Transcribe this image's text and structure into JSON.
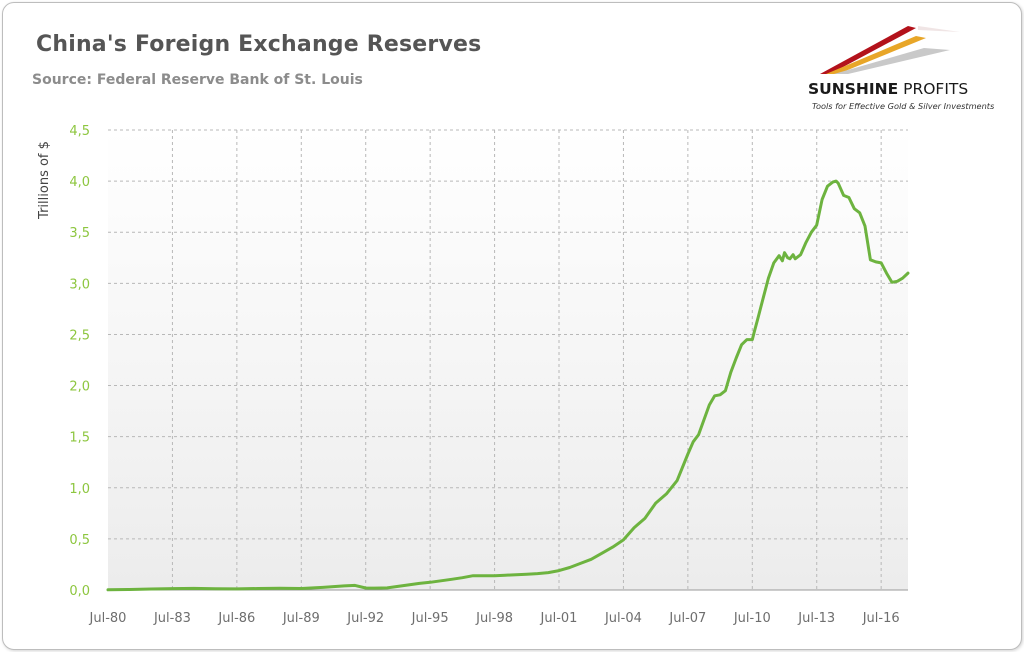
{
  "header": {
    "title": "China's Foreign Exchange Reserves",
    "subtitle": "Source: Federal Reserve Bank of St. Louis"
  },
  "logo": {
    "brand_bold": "SUNSHINE",
    "brand_light": " PROFITS",
    "tagline": "Tools for Effective Gold & Silver Investments",
    "colors": [
      "#b3121b",
      "#e8a628",
      "#c9c9c9"
    ]
  },
  "colors": {
    "line": "#6db33f",
    "ytick": "#8dc63f",
    "plot_bg_top": "#ffffff",
    "plot_bg_bottom": "#ececec",
    "grid": "#b8b8b8"
  },
  "chart_data": {
    "type": "line",
    "title": "China's Foreign Exchange Reserves",
    "subtitle": "Source: Federal Reserve Bank of St. Louis",
    "xlabel": "",
    "ylabel": "Trillions of $",
    "ylim": [
      0,
      4.5
    ],
    "xlim": [
      1980.5,
      2017.75
    ],
    "yticks": [
      "0,0",
      "0,5",
      "1,0",
      "1,5",
      "2,0",
      "2,5",
      "3,0",
      "3,5",
      "4,0",
      "4,5"
    ],
    "ytick_values": [
      0,
      0.5,
      1.0,
      1.5,
      2.0,
      2.5,
      3.0,
      3.5,
      4.0,
      4.5
    ],
    "xticks": [
      "Jul-80",
      "Jul-83",
      "Jul-86",
      "Jul-89",
      "Jul-92",
      "Jul-95",
      "Jul-98",
      "Jul-01",
      "Jul-04",
      "Jul-07",
      "Jul-10",
      "Jul-13",
      "Jul-16"
    ],
    "xtick_values": [
      1980.5,
      1983.5,
      1986.5,
      1989.5,
      1992.5,
      1995.5,
      1998.5,
      2001.5,
      2004.5,
      2007.5,
      2010.5,
      2013.5,
      2016.5
    ],
    "grid": true,
    "legend": "none",
    "series": [
      {
        "x": [
          1980.5,
          1981.5,
          1982.5,
          1983.5,
          1984.5,
          1985.5,
          1986.5,
          1987.5,
          1988.5,
          1989.5,
          1990.5,
          1991.5,
          1992.0,
          1992.5,
          1992.9,
          1993.5,
          1994.0,
          1994.5,
          1995.0,
          1995.5,
          1996.0,
          1996.5,
          1997.0,
          1997.5,
          1998.0,
          1998.5,
          1999.0,
          1999.5,
          2000.0,
          2000.5,
          2001.0,
          2001.5,
          2002.0,
          2002.5,
          2003.0,
          2003.5,
          2004.0,
          2004.5,
          2004.75,
          2005.0,
          2005.5,
          2006.0,
          2006.5,
          2007.0,
          2007.5,
          2007.75,
          2008.0,
          2008.5,
          2008.75,
          2009.0,
          2009.25,
          2009.5,
          2009.75,
          2010.0,
          2010.25,
          2010.5,
          2010.6,
          2010.75,
          2011.0,
          2011.25,
          2011.5,
          2011.75,
          2011.9,
          2012.0,
          2012.15,
          2012.25,
          2012.4,
          2012.5,
          2012.75,
          2013.0,
          2013.25,
          2013.5,
          2013.75,
          2014.0,
          2014.25,
          2014.4,
          2014.5,
          2014.75,
          2015.0,
          2015.25,
          2015.5,
          2015.75,
          2016.0,
          2016.25,
          2016.5,
          2016.75,
          2017.0,
          2017.25,
          2017.5,
          2017.75
        ],
        "values": [
          0.002,
          0.005,
          0.01,
          0.014,
          0.016,
          0.012,
          0.011,
          0.015,
          0.017,
          0.015,
          0.025,
          0.04,
          0.045,
          0.02,
          0.019,
          0.021,
          0.035,
          0.05,
          0.065,
          0.075,
          0.09,
          0.105,
          0.12,
          0.14,
          0.14,
          0.14,
          0.145,
          0.15,
          0.155,
          0.16,
          0.17,
          0.19,
          0.22,
          0.26,
          0.3,
          0.36,
          0.42,
          0.49,
          0.55,
          0.61,
          0.7,
          0.85,
          0.94,
          1.07,
          1.33,
          1.45,
          1.52,
          1.81,
          1.9,
          1.91,
          1.95,
          2.13,
          2.27,
          2.4,
          2.45,
          2.45,
          2.53,
          2.65,
          2.85,
          3.05,
          3.2,
          3.27,
          3.22,
          3.3,
          3.25,
          3.24,
          3.28,
          3.24,
          3.28,
          3.4,
          3.5,
          3.57,
          3.82,
          3.95,
          3.99,
          4.0,
          3.98,
          3.86,
          3.84,
          3.73,
          3.69,
          3.56,
          3.23,
          3.21,
          3.2,
          3.1,
          3.01,
          3.02,
          3.05,
          3.1
        ]
      }
    ]
  }
}
